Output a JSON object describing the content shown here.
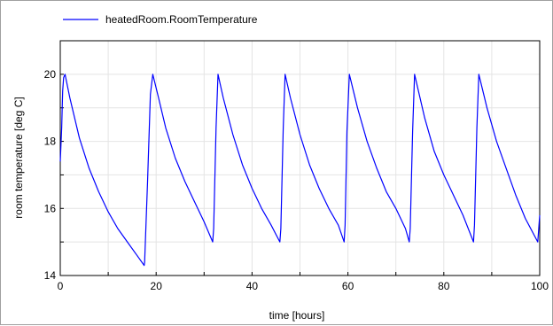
{
  "chart_data": {
    "type": "line",
    "xlabel": "time [hours]",
    "ylabel": "room temperature [deg C]",
    "xlim": [
      0,
      100
    ],
    "ylim": [
      14,
      21
    ],
    "xticks": [
      0,
      20,
      40,
      60,
      80,
      100
    ],
    "yticks": [
      14,
      16,
      18,
      20
    ],
    "grid": true,
    "legend": "top-left",
    "series": [
      {
        "name": "heatedRoom.RoomTemperature",
        "color": "#0000ff",
        "x": [
          0,
          0.3,
          0.5,
          0.7,
          1.0,
          2,
          4,
          6,
          8,
          10,
          12,
          14,
          16,
          17.5,
          17.6,
          18.2,
          18.8,
          19.3,
          20.5,
          22,
          24,
          26,
          28,
          30,
          31.8,
          32.0,
          32.5,
          32.9,
          34,
          36,
          38,
          40,
          42,
          44,
          45.8,
          46.0,
          46.5,
          46.9,
          48,
          50,
          52,
          54,
          56,
          58,
          59.2,
          59.4,
          59.8,
          60.3,
          62,
          64,
          66,
          68,
          70,
          72,
          72.8,
          73.0,
          73.5,
          73.9,
          76,
          78,
          80,
          82,
          84,
          86.2,
          86.4,
          86.9,
          87.3,
          89,
          91,
          93,
          95,
          97,
          99.6,
          99.8,
          100
        ],
        "y": [
          17.4,
          18.4,
          19.5,
          19.9,
          20.0,
          19.3,
          18.1,
          17.2,
          16.5,
          15.9,
          15.4,
          15.0,
          14.6,
          14.3,
          14.4,
          16.8,
          19.4,
          20.0,
          19.3,
          18.4,
          17.5,
          16.8,
          16.2,
          15.6,
          15.0,
          15.4,
          18.4,
          20.0,
          19.3,
          18.2,
          17.3,
          16.6,
          16.0,
          15.5,
          15.0,
          15.4,
          18.4,
          20.0,
          19.3,
          18.2,
          17.3,
          16.6,
          16.0,
          15.5,
          15.0,
          15.5,
          18.3,
          20.0,
          19.0,
          18.0,
          17.2,
          16.5,
          16.0,
          15.4,
          15.0,
          15.4,
          18.3,
          20.0,
          18.7,
          17.7,
          17.0,
          16.4,
          15.8,
          15.0,
          15.5,
          18.4,
          20.0,
          19.0,
          18.0,
          17.2,
          16.4,
          15.7,
          15.0,
          15.4,
          15.8
        ]
      }
    ]
  }
}
